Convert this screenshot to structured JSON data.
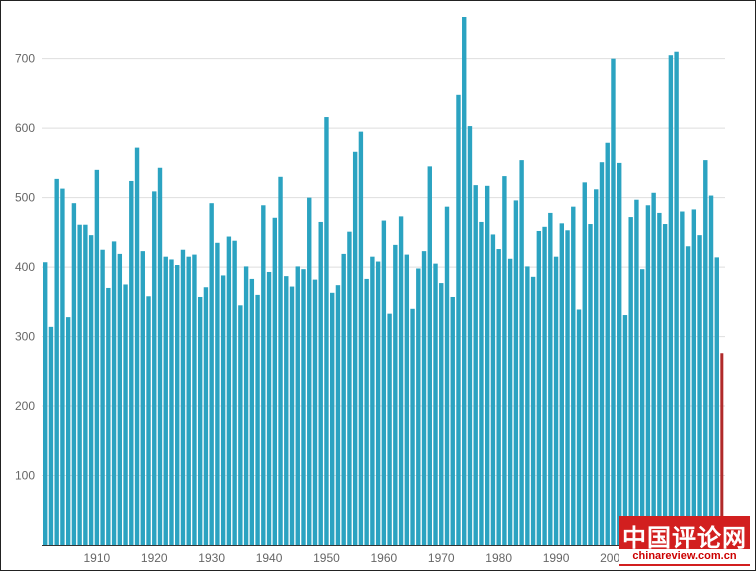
{
  "chart_data": {
    "type": "bar",
    "title": "",
    "xlabel": "",
    "ylabel": "",
    "ylim": [
      0,
      760
    ],
    "yticks": [
      100,
      200,
      300,
      400,
      500,
      600,
      700
    ],
    "xticks": [
      1910,
      1920,
      1930,
      1940,
      1950,
      1960,
      1970,
      1980,
      1990,
      2000
    ],
    "grid": true,
    "colors": {
      "bar": "#2ba3c1",
      "highlight": "#b02a2a"
    },
    "series": [
      {
        "x": [
          1901,
          1902,
          1903,
          1904,
          1905,
          1906,
          1907,
          1908,
          1909,
          1910,
          1911,
          1912,
          1913,
          1914,
          1915,
          1916,
          1917,
          1918,
          1919,
          1920,
          1921,
          1922,
          1923,
          1924,
          1925,
          1926,
          1927,
          1928,
          1929,
          1930,
          1931,
          1932,
          1933,
          1934,
          1935,
          1936,
          1937,
          1938,
          1939,
          1940,
          1941,
          1942,
          1943,
          1944,
          1945,
          1946,
          1947,
          1948,
          1949,
          1950,
          1951,
          1952,
          1953,
          1954,
          1955,
          1956,
          1957,
          1958,
          1959,
          1960,
          1961,
          1962,
          1963,
          1964,
          1965,
          1966,
          1967,
          1968,
          1969,
          1970,
          1971,
          1972,
          1973,
          1974,
          1975,
          1976,
          1977,
          1978,
          1979,
          1980,
          1981,
          1982,
          1983,
          1984,
          1985,
          1986,
          1987,
          1988,
          1989,
          1990,
          1991,
          1992,
          1993,
          1994,
          1995,
          1996,
          1997,
          1998,
          1999,
          2000,
          2001,
          2002,
          2003,
          2004,
          2005,
          2006,
          2007,
          2008,
          2009,
          2010,
          2011,
          2012,
          2013,
          2014,
          2015,
          2016,
          2017,
          2018,
          2019
        ],
        "values": [
          407,
          314,
          527,
          513,
          328,
          492,
          461,
          461,
          446,
          540,
          425,
          370,
          437,
          419,
          375,
          524,
          572,
          423,
          358,
          509,
          543,
          415,
          411,
          403,
          425,
          415,
          418,
          357,
          371,
          492,
          435,
          388,
          444,
          438,
          345,
          401,
          383,
          360,
          489,
          393,
          471,
          530,
          387,
          372,
          401,
          397,
          500,
          382,
          465,
          616,
          363,
          374,
          419,
          451,
          566,
          595,
          383,
          415,
          408,
          467,
          333,
          432,
          473,
          418,
          340,
          398,
          423,
          545,
          405,
          377,
          487,
          357,
          648,
          760,
          603,
          518,
          465,
          517,
          447,
          426,
          531,
          412,
          496,
          554,
          401,
          386,
          452,
          458,
          478,
          415,
          463,
          453,
          487,
          339,
          522,
          462,
          512,
          551,
          579,
          700,
          550,
          331,
          472,
          497,
          397,
          489,
          507,
          478,
          462,
          705,
          710,
          480,
          430,
          483,
          446,
          554,
          503,
          414,
          276
        ]
      }
    ]
  },
  "watermark": {
    "title": "中国评论网",
    "url": "chinareview.com.cn"
  }
}
